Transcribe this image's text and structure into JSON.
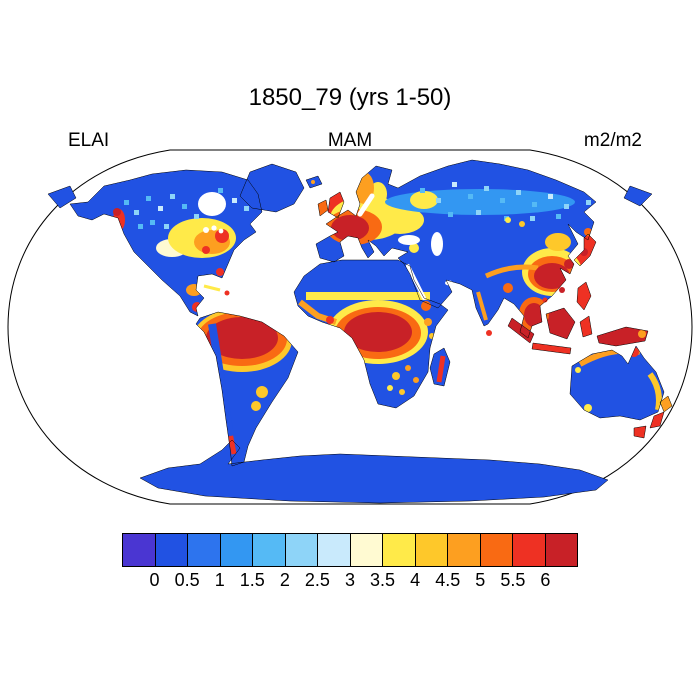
{
  "figure": {
    "title": "1850_79 (yrs 1-50)",
    "left_label": "ELAI",
    "center_label": "MAM",
    "units": "m2/m2"
  },
  "colorbar": {
    "colors": [
      "#4a36d2",
      "#2152e3",
      "#2d74ee",
      "#3397f2",
      "#55baf5",
      "#8ed4f8",
      "#c9eafc",
      "#fffad2",
      "#ffea49",
      "#fec82a",
      "#fd9f20",
      "#f96a13",
      "#ee3123",
      "#c82127"
    ],
    "tick_labels": [
      "0",
      "0.5",
      "1",
      "1.5",
      "2",
      "2.5",
      "3",
      "3.5",
      "4",
      "4.5",
      "5",
      "5.5",
      "6"
    ]
  },
  "map": {
    "ocean_color": "#ffffff",
    "outline_color": "#000000"
  },
  "chart_data": {
    "type": "heatmap",
    "title": "1850_79 (yrs 1-50)",
    "variable": "ELAI",
    "season": "MAM",
    "units": "m2/m2",
    "projection": "robinson-global",
    "colorbar_levels": [
      0,
      0.5,
      1,
      1.5,
      2,
      2.5,
      3,
      3.5,
      4,
      4.5,
      5,
      5.5,
      6
    ],
    "palette": [
      "#4a36d2",
      "#2152e3",
      "#2d74ee",
      "#3397f2",
      "#55baf5",
      "#8ed4f8",
      "#c9eafc",
      "#fffad2",
      "#ffea49",
      "#fec82a",
      "#fd9f20",
      "#f96a13",
      "#ee3123",
      "#c82127"
    ],
    "region_estimates": [
      {
        "region": "Amazon basin",
        "elai": 6
      },
      {
        "region": "Congo basin",
        "elai": 6
      },
      {
        "region": "Indonesia / Maritime continent",
        "elai": 6
      },
      {
        "region": "South China / Indochina",
        "elai": 6
      },
      {
        "region": "New Guinea",
        "elai": 6
      },
      {
        "region": "Western & Central Europe",
        "elai": 5.5
      },
      {
        "region": "British Isles",
        "elai": 5.5
      },
      {
        "region": "Pacific Northwest",
        "elai": 5.5
      },
      {
        "region": "Japan & Korea",
        "elai": 5.5
      },
      {
        "region": "Southern Chile",
        "elai": 5
      },
      {
        "region": "Eastern United States",
        "elai": 4
      },
      {
        "region": "Scandinavia",
        "elai": 4
      },
      {
        "region": "Eastern Europe",
        "elai": 3.5
      },
      {
        "region": "Sahel band",
        "elai": 3
      },
      {
        "region": "Northern / Eastern Australia coast",
        "elai": 4
      },
      {
        "region": "Boreal Canada",
        "elai": 1.5
      },
      {
        "region": "Siberia",
        "elai": 1
      },
      {
        "region": "Central Asia",
        "elai": 0.5
      },
      {
        "region": "Sahara",
        "elai": 0.25
      },
      {
        "region": "Arabia",
        "elai": 0.25
      },
      {
        "region": "Australian interior",
        "elai": 0.25
      },
      {
        "region": "Tibetan Plateau",
        "elai": 0.25
      },
      {
        "region": "Greenland",
        "elai": 0
      },
      {
        "region": "Antarctica",
        "elai": 0
      }
    ]
  }
}
